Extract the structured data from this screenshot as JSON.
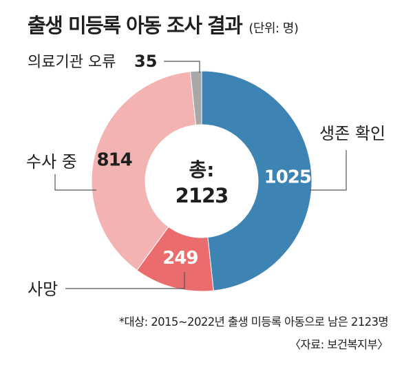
{
  "header": {
    "title": "출생 미등록 아동 조사 결과",
    "unit": "(단위: 명)"
  },
  "chart_data": {
    "type": "pie",
    "variant": "donut",
    "title": "출생 미등록 아동 조사 결과",
    "unit": "(단위: 명)",
    "center_label": "총:",
    "center_value": "2123",
    "categories": [
      "생존 확인",
      "사망",
      "수사 중",
      "의료기관 오류"
    ],
    "values": [
      1025,
      249,
      814,
      35
    ],
    "total": 2123,
    "slice_order": "clockwise from top",
    "colors": {
      "생존 확인": "#3d84b5",
      "사망": "#eb6c6c",
      "수사 중": "#f3b3b3",
      "의료기관 오류": "#a8a8a8"
    },
    "value_label_colors": {
      "생존 확인": "#ffffff",
      "사망": "#ffffff",
      "수사 중": "#1f1f1f",
      "의료기관 오류": "#1f1f1f"
    }
  },
  "footnote": "*대상: 2015~2022년 출생 미등록 아동으로 남은 2123명",
  "source": "〈자료: 보건복지부〉"
}
